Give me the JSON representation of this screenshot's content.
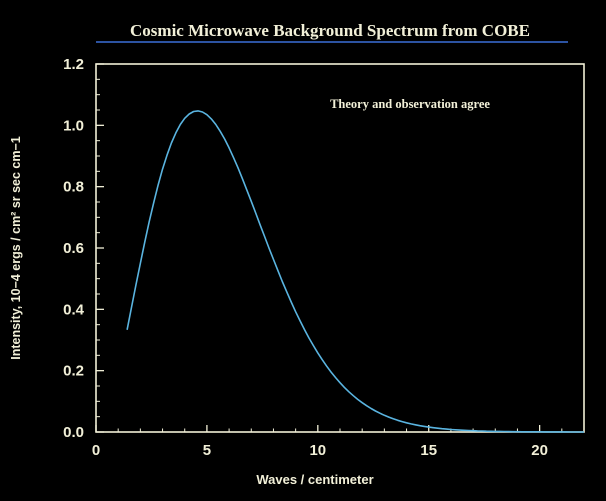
{
  "colors": {
    "background": "#000000",
    "axes": "#f2f0d8",
    "text": "#f2f0d8",
    "curve": "#5ab4e0",
    "title_rule": "#3a6fd8"
  },
  "chart_data": {
    "type": "line",
    "title": "Cosmic Microwave Background Spectrum from COBE",
    "annotation": "Theory and observation agree",
    "xlabel": "Waves / centimeter",
    "ylabel": "Intensity, 10−4 ergs / cm² sr sec cm−1",
    "xlim": [
      0,
      22
    ],
    "ylim": [
      0,
      1.2
    ],
    "xticks": [
      0,
      5,
      10,
      15,
      20
    ],
    "yticks": [
      0.0,
      0.2,
      0.4,
      0.6,
      0.8,
      1.0,
      1.2
    ],
    "xtick_labels": [
      "0",
      "5",
      "10",
      "15",
      "20"
    ],
    "ytick_labels": [
      "0.0",
      "0.2",
      "0.4",
      "0.6",
      "0.8",
      "1.0",
      "1.2"
    ],
    "grid": false,
    "series": [
      {
        "x": [
          1.4,
          1.6,
          1.8,
          2.0,
          2.2,
          2.4,
          2.6,
          2.8,
          3.0,
          3.2,
          3.4,
          3.6,
          3.8,
          4.0,
          4.2,
          4.4,
          4.6,
          4.8,
          5.0,
          5.2,
          5.4,
          5.6,
          5.8,
          6.0,
          6.2,
          6.4,
          6.6,
          6.8,
          7.0,
          7.2,
          7.4,
          7.6,
          7.8,
          8.0,
          8.2,
          8.4,
          8.6,
          8.8,
          9.0,
          9.2,
          9.4,
          9.6,
          9.8,
          10.0,
          10.2,
          10.4,
          10.6,
          10.8,
          11.0,
          11.2,
          11.4,
          11.6,
          11.8,
          12.0,
          12.2,
          12.4,
          12.6,
          12.8,
          13.0,
          13.2,
          13.4,
          13.6,
          13.8,
          14.0,
          14.2,
          14.4,
          14.6,
          14.8,
          15.0,
          15.2,
          15.4,
          15.6,
          15.8,
          16.0,
          16.2,
          16.4,
          16.6,
          16.8,
          17.0,
          17.2,
          17.4,
          17.6,
          17.8,
          18.0,
          18.2,
          18.4,
          18.6,
          18.8,
          19.0,
          19.2,
          19.4,
          19.6,
          19.8,
          20.0,
          20.2,
          20.4,
          20.6,
          20.8,
          21.0,
          21.2,
          21.4,
          21.6,
          21.8,
          22.0
        ],
        "values": [
          0.3334,
          0.4063,
          0.479,
          0.5506,
          0.6199,
          0.6859,
          0.7478,
          0.805,
          0.8568,
          0.9027,
          0.9424,
          0.9758,
          1.0026,
          1.023,
          1.0371,
          1.045,
          1.047,
          1.0434,
          1.0346,
          1.0209,
          1.0028,
          0.9807,
          0.955,
          0.9263,
          0.8949,
          0.8614,
          0.8261,
          0.7895,
          0.752,
          0.714,
          0.6757,
          0.6375,
          0.5997,
          0.5625,
          0.5262,
          0.4908,
          0.4567,
          0.4238,
          0.3924,
          0.3624,
          0.3339,
          0.307,
          0.2816,
          0.2578,
          0.2355,
          0.2147,
          0.1953,
          0.1774,
          0.1607,
          0.1454,
          0.1312,
          0.1183,
          0.1064,
          0.0956,
          0.0857,
          0.0767,
          0.0686,
          0.0612,
          0.0545,
          0.0485,
          0.0431,
          0.0383,
          0.0339,
          0.03,
          0.0265,
          0.0234,
          0.0206,
          0.0182,
          0.016,
          0.014,
          0.0123,
          0.0108,
          0.0094,
          0.0082,
          0.0072,
          0.0063,
          0.0055,
          0.0048,
          0.0041,
          0.0036,
          0.0031,
          0.0027,
          0.0024,
          0.002,
          0.0018,
          0.0015,
          0.0013,
          0.0011,
          0.001,
          0.0008,
          0.0007,
          0.0006,
          0.0005,
          0.0005,
          0.0004,
          0.0003,
          0.0003,
          0.0002,
          0.0002,
          0.0002,
          0.0001,
          0.0001,
          0.0001,
          0.0001
        ]
      }
    ]
  }
}
